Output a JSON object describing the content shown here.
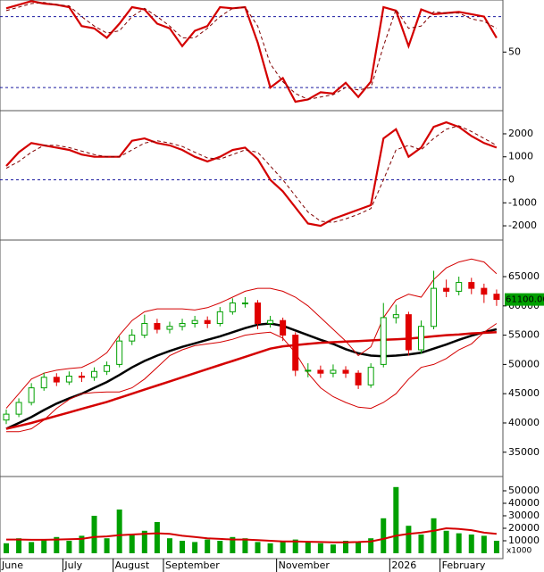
{
  "chart_data": [
    {
      "type": "line",
      "ylim": [
        2,
        94
      ],
      "yticks": [
        50
      ],
      "levels": [
        80,
        20
      ],
      "level_color": "#1a1aa0",
      "series": [
        {
          "color": "#d40000",
          "values": [
            87,
            90,
            93,
            91,
            90,
            88,
            72,
            70,
            62,
            74,
            88,
            86,
            74,
            70,
            55,
            68,
            72,
            88,
            87,
            88,
            58,
            20,
            28,
            8,
            10,
            16,
            15,
            24,
            12,
            25,
            88,
            85,
            55,
            86,
            82,
            83,
            84,
            82,
            80,
            62
          ]
        },
        {
          "color": "#800000",
          "dash": true,
          "values": [
            85,
            88,
            91,
            92,
            90,
            89,
            80,
            72,
            66,
            68,
            80,
            87,
            80,
            72,
            62,
            62,
            70,
            80,
            87,
            88,
            72,
            40,
            25,
            15,
            10,
            12,
            14,
            20,
            18,
            20,
            55,
            86,
            70,
            72,
            84,
            83,
            83,
            78,
            76,
            70
          ]
        }
      ]
    },
    {
      "type": "line",
      "ylim": [
        -2580,
        2930
      ],
      "yticks": [
        2000,
        1000,
        0,
        -1000,
        -2000
      ],
      "levels": [
        0
      ],
      "level_color": "#1a1aa0",
      "series": [
        {
          "color": "#d40000",
          "values": [
            600,
            1200,
            1600,
            1500,
            1400,
            1300,
            1100,
            1000,
            1000,
            1000,
            1700,
            1800,
            1600,
            1500,
            1300,
            1000,
            800,
            1000,
            1300,
            1400,
            900,
            0,
            -500,
            -1200,
            -1900,
            -2000,
            -1700,
            -1500,
            -1300,
            -1100,
            1800,
            2200,
            1000,
            1400,
            2300,
            2500,
            2300,
            1900,
            1600,
            1400
          ]
        },
        {
          "color": "#800000",
          "dash": true,
          "values": [
            500,
            800,
            1200,
            1500,
            1500,
            1400,
            1250,
            1100,
            1000,
            1000,
            1300,
            1600,
            1700,
            1600,
            1450,
            1200,
            950,
            900,
            1100,
            1300,
            1200,
            600,
            0,
            -700,
            -1400,
            -1800,
            -1850,
            -1700,
            -1500,
            -1250,
            0,
            1300,
            1500,
            1300,
            1800,
            2200,
            2350,
            2100,
            1800,
            1500
          ]
        }
      ]
    },
    {
      "type": "candlestick",
      "ylim": [
        31000,
        71100
      ],
      "yticks": [
        65000,
        60000,
        55000,
        50000,
        45000,
        40000,
        35000
      ],
      "up_color": "#00a000",
      "down_color": "#e00000",
      "open": [
        40500,
        41500,
        43500,
        46000,
        47800,
        47000,
        48000,
        47800,
        48800,
        50000,
        54000,
        55000,
        57000,
        56000,
        56500,
        57000,
        57500,
        57000,
        59000,
        60500,
        60500,
        57000,
        57500,
        55000,
        49000,
        49000,
        48500,
        49000,
        48500,
        46500,
        50000,
        58000,
        58500,
        52500,
        56500,
        63000,
        62500,
        64000,
        63000,
        62000
      ],
      "high": [
        42300,
        44200,
        46800,
        48600,
        48500,
        48800,
        48700,
        49500,
        50500,
        54800,
        56000,
        58500,
        57800,
        57300,
        57800,
        58300,
        58200,
        59800,
        61300,
        61500,
        61000,
        58300,
        58000,
        55500,
        50200,
        49800,
        50000,
        49700,
        49000,
        50200,
        60500,
        60200,
        59000,
        57500,
        66000,
        64500,
        65000,
        64800,
        63800,
        62800
      ],
      "low": [
        39800,
        41000,
        43000,
        45500,
        46300,
        46500,
        47000,
        47200,
        48200,
        49500,
        53300,
        54500,
        55300,
        55300,
        55800,
        56300,
        56200,
        56500,
        58500,
        59700,
        56000,
        56300,
        54000,
        48000,
        47800,
        47700,
        47800,
        47700,
        45800,
        46000,
        49500,
        57000,
        51500,
        51800,
        56000,
        61500,
        61800,
        62000,
        60500,
        60000
      ],
      "close": [
        41500,
        43500,
        46000,
        47800,
        47000,
        48000,
        47800,
        48800,
        49800,
        54000,
        55000,
        57000,
        56000,
        56500,
        57000,
        57500,
        57000,
        59000,
        60500,
        60500,
        57000,
        57500,
        55000,
        49000,
        49000,
        48500,
        49000,
        48500,
        46500,
        49500,
        58000,
        58500,
        52500,
        56500,
        63000,
        62500,
        64000,
        63000,
        62000,
        61100
      ],
      "series": [
        {
          "color": "#000000",
          "width": 2.5,
          "values": [
            39000,
            40000,
            41000,
            42200,
            43300,
            44200,
            45000,
            46000,
            47000,
            48200,
            49500,
            50600,
            51500,
            52300,
            53000,
            53600,
            54200,
            54800,
            55500,
            56200,
            56800,
            57000,
            56600,
            55800,
            55000,
            54200,
            53500,
            52600,
            51900,
            51500,
            51400,
            51500,
            51700,
            52000,
            52700,
            53400,
            54200,
            54900,
            55500,
            56000
          ]
        },
        {
          "color": "#d40000",
          "width": 2.5,
          "values": [
            39000,
            39500,
            40000,
            40600,
            41200,
            41800,
            42400,
            43000,
            43600,
            44300,
            45000,
            45700,
            46400,
            47100,
            47800,
            48500,
            49200,
            49900,
            50600,
            51300,
            52000,
            52700,
            53100,
            53300,
            53500,
            53700,
            53800,
            53900,
            54000,
            54100,
            54200,
            54300,
            54400,
            54600,
            54800,
            55000,
            55100,
            55300,
            55400,
            55500
          ]
        },
        {
          "color": "#d40000",
          "width": 1,
          "values": [
            42500,
            45000,
            47500,
            48500,
            49000,
            49300,
            49500,
            50500,
            52000,
            55000,
            57500,
            59000,
            59500,
            59500,
            59500,
            59300,
            59700,
            60500,
            61500,
            62500,
            63000,
            63000,
            62500,
            61500,
            60000,
            58000,
            56000,
            54000,
            51500,
            53000,
            58000,
            61000,
            62000,
            61500,
            64500,
            66500,
            67500,
            68000,
            67500,
            65500
          ]
        },
        {
          "color": "#d40000",
          "width": 1,
          "values": [
            38500,
            38500,
            39000,
            40500,
            42500,
            44000,
            45000,
            45200,
            45300,
            45300,
            46000,
            47500,
            49500,
            51500,
            52500,
            53200,
            53500,
            53800,
            54300,
            55000,
            55300,
            55500,
            54500,
            52000,
            48500,
            46000,
            44500,
            43500,
            42700,
            42500,
            43500,
            45000,
            47500,
            49500,
            50000,
            51000,
            52500,
            53500,
            55500,
            57000
          ]
        }
      ],
      "last_price": {
        "value": 61100,
        "label": "61100.00"
      }
    },
    {
      "type": "bar",
      "ylim": [
        0,
        60000
      ],
      "yticks": [
        50000,
        40000,
        30000,
        20000,
        10000
      ],
      "unit_label": "x1000",
      "color": "#00a000",
      "categories": [
        "June",
        null,
        null,
        null,
        null,
        "July",
        null,
        null,
        null,
        "August",
        null,
        null,
        null,
        "September",
        null,
        null,
        null,
        null,
        null,
        null,
        null,
        null,
        "November",
        null,
        null,
        null,
        null,
        null,
        null,
        null,
        null,
        "2026",
        null,
        null,
        null,
        "February",
        null,
        null,
        null,
        null
      ],
      "values": [
        8000,
        12000,
        9000,
        11000,
        13000,
        10000,
        14000,
        30000,
        12000,
        35000,
        15000,
        18000,
        25000,
        12000,
        10000,
        9000,
        11000,
        10000,
        13000,
        12000,
        9000,
        8000,
        10000,
        11000,
        9000,
        8000,
        7000,
        10000,
        9000,
        12000,
        28000,
        53000,
        22000,
        15000,
        28000,
        18000,
        16000,
        15000,
        14000,
        10000
      ],
      "series": [
        {
          "color": "#d40000",
          "width": 2,
          "values": [
            11000,
            11000,
            10800,
            10800,
            11000,
            11200,
            11500,
            13000,
            13500,
            14500,
            15000,
            15500,
            16000,
            15500,
            14000,
            13000,
            12000,
            11500,
            11000,
            11000,
            10500,
            10000,
            9500,
            9500,
            9200,
            9000,
            8800,
            8800,
            9000,
            9500,
            11500,
            14000,
            15500,
            16500,
            18000,
            20000,
            19500,
            18500,
            16500,
            15500
          ]
        }
      ]
    }
  ]
}
